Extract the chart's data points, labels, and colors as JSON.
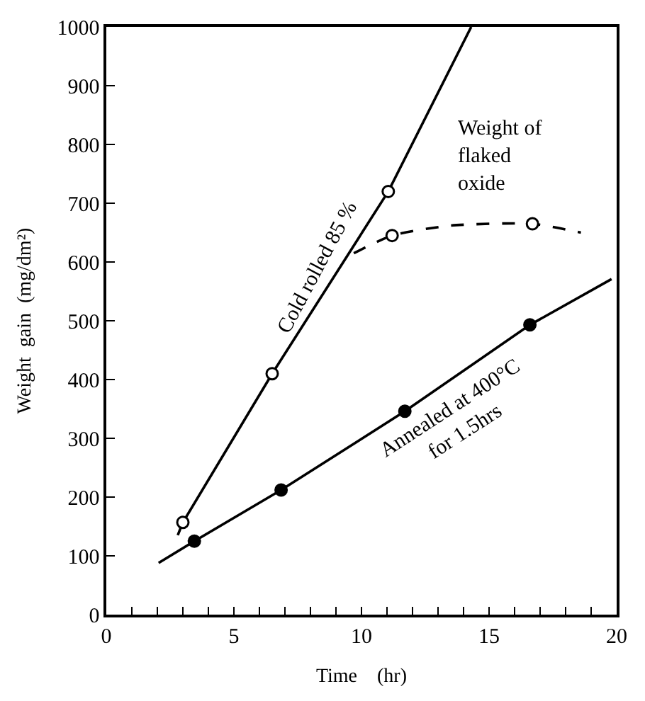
{
  "chart_data": {
    "type": "line",
    "xlabel": "Time    (hr)",
    "ylabel": "Weight  gain  (mg/dm²)",
    "xlim": [
      0,
      20
    ],
    "ylim": [
      0,
      1000
    ],
    "xticks": [
      0,
      {
        "value": 1,
        "label": null
      },
      {
        "value": 2,
        "label": null
      },
      {
        "value": 3,
        "label": null
      },
      {
        "value": 4,
        "label": null
      },
      5,
      {
        "value": 6,
        "label": null
      },
      {
        "value": 7,
        "label": null
      },
      {
        "value": 8,
        "label": null
      },
      {
        "value": 9,
        "label": null
      },
      10,
      {
        "value": 11,
        "label": null
      },
      {
        "value": 12,
        "label": null
      },
      {
        "value": 13,
        "label": null
      },
      {
        "value": 14,
        "label": null
      },
      15,
      {
        "value": 16,
        "label": null
      },
      {
        "value": 17,
        "label": null
      },
      {
        "value": 18,
        "label": null
      },
      {
        "value": 19,
        "label": null
      },
      20
    ],
    "yticks": [
      0,
      100,
      200,
      300,
      400,
      500,
      600,
      700,
      800,
      900,
      1000
    ],
    "series": [
      {
        "color": "#000000",
        "marker": "none",
        "line_style": "solid",
        "x": [
          2.8,
          3.0,
          6.5,
          11.05,
          14.3
        ],
        "values": [
          135,
          157,
          410,
          720,
          1000
        ]
      },
      {
        "color": "#000000",
        "marker": "none",
        "line_style": "solid",
        "x": [
          2.05,
          3.45,
          6.85,
          11.7,
          16.6,
          19.8
        ],
        "values": [
          88,
          125,
          212,
          346,
          493,
          571
        ]
      },
      {
        "color": "#000000",
        "marker": "none",
        "line_style": "dashed",
        "x": [
          9.7,
          11.2,
          13.5,
          16.7,
          18.6
        ],
        "values": [
          615,
          645,
          662,
          665,
          650
        ]
      },
      {
        "type": "scatter",
        "color": "#ffffff",
        "marker": "circle",
        "x": [
          3.0,
          6.5,
          11.05,
          11.2,
          16.7
        ],
        "values": [
          157,
          410,
          720,
          645,
          665
        ]
      },
      {
        "type": "scatter",
        "color": "#000000",
        "marker": "circle",
        "x": [
          3.45,
          6.85,
          11.7,
          16.6
        ],
        "values": [
          125,
          212,
          346,
          493
        ]
      }
    ],
    "annotations": [
      "Cold rolled 85 %",
      "Weight of flaked oxide",
      "Annealed at 400°C for 1.5hrs"
    ]
  }
}
